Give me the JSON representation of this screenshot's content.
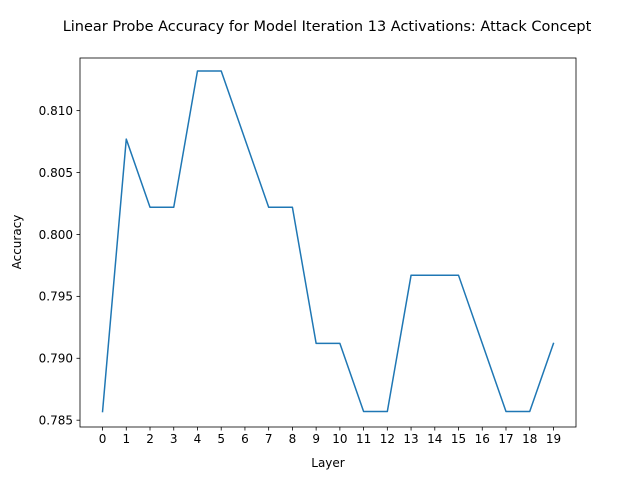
{
  "chart_data": {
    "type": "line",
    "title": "Linear Probe Accuracy for Model Iteration 13 Activations: Attack Concept",
    "xlabel": "Layer",
    "ylabel": "Accuracy",
    "x": [
      0,
      1,
      2,
      3,
      4,
      5,
      6,
      7,
      8,
      9,
      10,
      11,
      12,
      13,
      14,
      15,
      16,
      17,
      18,
      19
    ],
    "series": [
      {
        "values": [
          0.7857,
          0.8077,
          0.8022,
          0.8022,
          0.8132,
          0.8132,
          0.8077,
          0.8022,
          0.8022,
          0.7912,
          0.7912,
          0.7857,
          0.7857,
          0.7967,
          0.7967,
          0.7967,
          0.7912,
          0.7857,
          0.7857,
          0.7912
        ],
        "color": "#1f77b4"
      }
    ],
    "xlim": [
      -0.95,
      19.95
    ],
    "ylim": [
      0.78445,
      0.81425
    ],
    "xticks": [
      "0",
      "1",
      "2",
      "3",
      "4",
      "5",
      "6",
      "7",
      "8",
      "9",
      "10",
      "11",
      "12",
      "13",
      "14",
      "15",
      "16",
      "17",
      "18",
      "19"
    ],
    "yticks": [
      "0.785",
      "0.790",
      "0.795",
      "0.800",
      "0.805",
      "0.810"
    ],
    "ytick_values": [
      0.785,
      0.79,
      0.795,
      0.8,
      0.805,
      0.81
    ],
    "grid": false,
    "legend": "none"
  }
}
